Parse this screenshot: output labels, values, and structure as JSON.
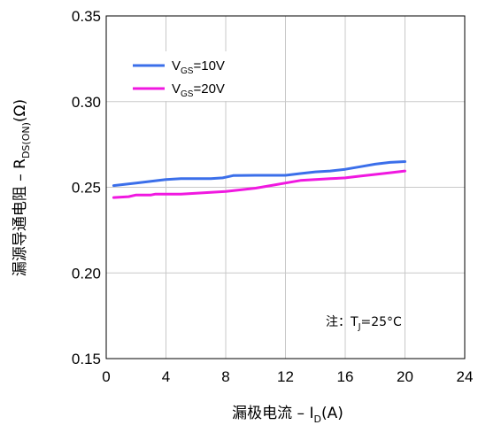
{
  "chart_data": {
    "type": "line",
    "xlabel": {
      "main": "漏极电流 – I",
      "sub": "D",
      "tail": "(A)"
    },
    "ylabel": {
      "main": "漏源导通电阻 – R",
      "sub": "DS(ON)",
      "tail": "(Ω)"
    },
    "xlim": [
      0,
      24
    ],
    "ylim": [
      0.15,
      0.35
    ],
    "xticks": [
      "0",
      "4",
      "8",
      "12",
      "16",
      "20",
      "24"
    ],
    "yticks": [
      "0.15",
      "0.20",
      "0.25",
      "0.30",
      "0.35"
    ],
    "grid": true,
    "legend_position": "top-left",
    "annotation": {
      "prefix": "注：T",
      "sub": "J",
      "tail": "=25°C"
    },
    "series": [
      {
        "name": "VGS=10V",
        "label": {
          "main": "V",
          "sub": "GS",
          "tail": "=10V"
        },
        "color": "#3b6fea",
        "x": [
          0.5,
          2,
          3,
          4,
          5,
          6,
          7,
          7.8,
          8.5,
          10,
          12,
          13,
          14,
          15,
          16,
          17,
          18,
          19,
          20
        ],
        "y": [
          0.251,
          0.2525,
          0.2535,
          0.2545,
          0.255,
          0.255,
          0.255,
          0.2555,
          0.2568,
          0.257,
          0.257,
          0.258,
          0.259,
          0.2595,
          0.2605,
          0.262,
          0.2635,
          0.2645,
          0.265
        ]
      },
      {
        "name": "VGS=20V",
        "label": {
          "main": "V",
          "sub": "GS",
          "tail": "=20V"
        },
        "color": "#f018e0",
        "x": [
          0.5,
          1.5,
          2,
          2.5,
          3,
          3.3,
          4,
          5,
          6,
          7,
          8,
          9,
          10,
          11,
          12,
          13,
          14,
          15,
          16,
          17,
          18,
          19,
          20
        ],
        "y": [
          0.244,
          0.2445,
          0.2455,
          0.2455,
          0.2455,
          0.246,
          0.246,
          0.246,
          0.2465,
          0.247,
          0.2475,
          0.2485,
          0.2495,
          0.251,
          0.2525,
          0.254,
          0.2545,
          0.255,
          0.2555,
          0.2565,
          0.2575,
          0.2585,
          0.2595
        ]
      }
    ]
  }
}
